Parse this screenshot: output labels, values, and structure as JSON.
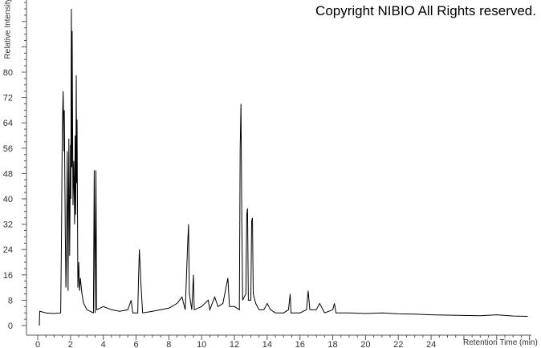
{
  "copyright": "Copyright NIBIO All Rights reserved.",
  "chart_data": {
    "type": "line",
    "title": "",
    "xlabel": "Retention Time (min)",
    "ylabel": "Relative Intensity",
    "xlim": [
      0,
      30
    ],
    "ylim": [
      0,
      102
    ],
    "x_ticks": [
      0,
      2,
      4,
      6,
      8,
      10,
      12,
      14,
      16,
      18,
      20,
      22,
      24
    ],
    "y_ticks": [
      0,
      8,
      16,
      24,
      32,
      40,
      48,
      56,
      64,
      72,
      80
    ],
    "grid": false,
    "color": "#000000",
    "series": [
      {
        "points": [
          [
            0.1,
            0
          ],
          [
            0.12,
            4.5
          ],
          [
            0.5,
            4
          ],
          [
            1.0,
            3.8
          ],
          [
            1.4,
            4
          ],
          [
            1.45,
            28
          ],
          [
            1.5,
            62
          ],
          [
            1.55,
            74
          ],
          [
            1.6,
            55
          ],
          [
            1.62,
            68
          ],
          [
            1.68,
            30
          ],
          [
            1.72,
            12
          ],
          [
            1.75,
            21
          ],
          [
            1.8,
            55
          ],
          [
            1.85,
            11
          ],
          [
            1.9,
            59
          ],
          [
            1.95,
            22
          ],
          [
            2.0,
            57
          ],
          [
            2.02,
            40
          ],
          [
            2.05,
            100
          ],
          [
            2.08,
            50
          ],
          [
            2.1,
            93
          ],
          [
            2.15,
            38
          ],
          [
            2.2,
            52
          ],
          [
            2.25,
            32
          ],
          [
            2.28,
            60
          ],
          [
            2.32,
            35
          ],
          [
            2.35,
            79
          ],
          [
            2.38,
            45
          ],
          [
            2.4,
            65
          ],
          [
            2.45,
            12
          ],
          [
            2.5,
            20
          ],
          [
            2.55,
            11
          ],
          [
            2.6,
            15
          ],
          [
            2.7,
            10
          ],
          [
            2.8,
            7
          ],
          [
            3.0,
            5
          ],
          [
            3.4,
            4
          ],
          [
            3.45,
            49
          ],
          [
            3.5,
            4
          ],
          [
            3.55,
            49
          ],
          [
            3.6,
            5
          ],
          [
            4.0,
            6
          ],
          [
            4.5,
            5
          ],
          [
            5.0,
            4.5
          ],
          [
            5.5,
            5
          ],
          [
            5.7,
            8
          ],
          [
            5.8,
            4
          ],
          [
            6.1,
            4
          ],
          [
            6.15,
            15
          ],
          [
            6.2,
            24
          ],
          [
            6.25,
            19
          ],
          [
            6.3,
            13
          ],
          [
            6.4,
            4
          ],
          [
            7,
            4.5
          ],
          [
            7.5,
            5
          ],
          [
            8,
            5.5
          ],
          [
            8.5,
            7
          ],
          [
            8.8,
            9
          ],
          [
            9.0,
            5
          ],
          [
            9.15,
            26
          ],
          [
            9.2,
            32
          ],
          [
            9.25,
            10
          ],
          [
            9.4,
            5
          ],
          [
            9.5,
            16
          ],
          [
            9.55,
            5
          ],
          [
            10,
            6
          ],
          [
            10.4,
            8
          ],
          [
            10.5,
            5
          ],
          [
            10.8,
            9
          ],
          [
            11,
            6
          ],
          [
            11.3,
            7
          ],
          [
            11.6,
            15
          ],
          [
            11.7,
            6
          ],
          [
            12.0,
            6
          ],
          [
            12.3,
            5
          ],
          [
            12.35,
            56
          ],
          [
            12.4,
            70
          ],
          [
            12.45,
            35
          ],
          [
            12.5,
            8
          ],
          [
            12.7,
            10
          ],
          [
            12.75,
            35
          ],
          [
            12.8,
            37
          ],
          [
            12.85,
            8
          ],
          [
            13.0,
            8
          ],
          [
            13.05,
            33
          ],
          [
            13.1,
            34
          ],
          [
            13.15,
            10
          ],
          [
            13.3,
            7
          ],
          [
            13.5,
            5
          ],
          [
            13.8,
            5
          ],
          [
            14.0,
            7
          ],
          [
            14.2,
            5
          ],
          [
            14.5,
            4
          ],
          [
            15.0,
            4
          ],
          [
            15.3,
            5
          ],
          [
            15.4,
            10
          ],
          [
            15.45,
            4
          ],
          [
            16,
            4
          ],
          [
            16.4,
            5
          ],
          [
            16.5,
            11
          ],
          [
            16.6,
            5
          ],
          [
            17,
            5
          ],
          [
            17.2,
            7
          ],
          [
            17.5,
            4
          ],
          [
            18,
            5
          ],
          [
            18.1,
            7
          ],
          [
            18.2,
            4
          ],
          [
            19,
            4
          ],
          [
            20,
            3.8
          ],
          [
            21,
            4
          ],
          [
            22,
            3.7
          ],
          [
            23,
            3.6
          ],
          [
            24,
            3.4
          ],
          [
            25,
            3.3
          ],
          [
            26,
            3.2
          ],
          [
            27,
            3.1
          ],
          [
            28,
            3.4
          ],
          [
            29,
            3.0
          ],
          [
            29.9,
            2.9
          ]
        ]
      }
    ]
  }
}
